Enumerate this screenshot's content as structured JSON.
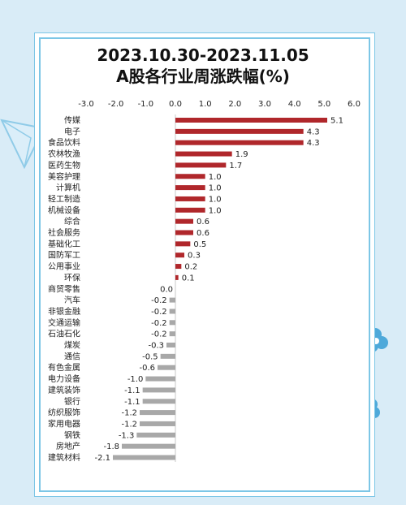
{
  "title_line1": "2023.10.30-2023.11.05",
  "title_line2": "A股各行业周涨跌幅(%)",
  "colors": {
    "positive": "#b0272b",
    "negative": "#a8a8a8",
    "frame": "#7cc6e6",
    "background": "#d9ecf7"
  },
  "chart_data": {
    "type": "bar",
    "orientation": "horizontal",
    "title": "2023.10.30-2023.11.05 A股各行业周涨跌幅(%)",
    "xlim": [
      -3.0,
      6.0
    ],
    "x_ticks": [
      -3.0,
      -2.0,
      -1.0,
      0.0,
      1.0,
      2.0,
      3.0,
      4.0,
      5.0,
      6.0
    ],
    "x_tick_labels": [
      "-3.0",
      "-2.0",
      "-1.0",
      "0.0",
      "1.0",
      "2.0",
      "3.0",
      "4.0",
      "5.0",
      "6.0"
    ],
    "x_axis_position": "top",
    "grid": false,
    "categories": [
      "传媒",
      "电子",
      "食品饮料",
      "农林牧渔",
      "医药生物",
      "美容护理",
      "计算机",
      "轻工制造",
      "机械设备",
      "综合",
      "社会服务",
      "基础化工",
      "国防军工",
      "公用事业",
      "环保",
      "商贸零售",
      "汽车",
      "非银金融",
      "交通运输",
      "石油石化",
      "煤炭",
      "通信",
      "有色金属",
      "电力设备",
      "建筑装饰",
      "银行",
      "纺织服饰",
      "家用电器",
      "钢铁",
      "房地产",
      "建筑材料"
    ],
    "values": [
      5.1,
      4.3,
      4.3,
      1.9,
      1.7,
      1.0,
      1.0,
      1.0,
      1.0,
      0.6,
      0.6,
      0.5,
      0.3,
      0.2,
      0.1,
      0.0,
      -0.2,
      -0.2,
      -0.2,
      -0.2,
      -0.3,
      -0.5,
      -0.6,
      -1.0,
      -1.1,
      -1.1,
      -1.2,
      -1.2,
      -1.3,
      -1.8,
      -2.1
    ],
    "value_labels": [
      "5.1",
      "4.3",
      "4.3",
      "1.9",
      "1.7",
      "1.0",
      "1.0",
      "1.0",
      "1.0",
      "0.6",
      "0.6",
      "0.5",
      "0.3",
      "0.2",
      "0.1",
      "0.0",
      "-0.2",
      "-0.2",
      "-0.2",
      "-0.2",
      "-0.3",
      "-0.5",
      "-0.6",
      "-1.0",
      "-1.1",
      "-1.1",
      "-1.2",
      "-1.2",
      "-1.3",
      "-1.8",
      "-2.1"
    ]
  }
}
